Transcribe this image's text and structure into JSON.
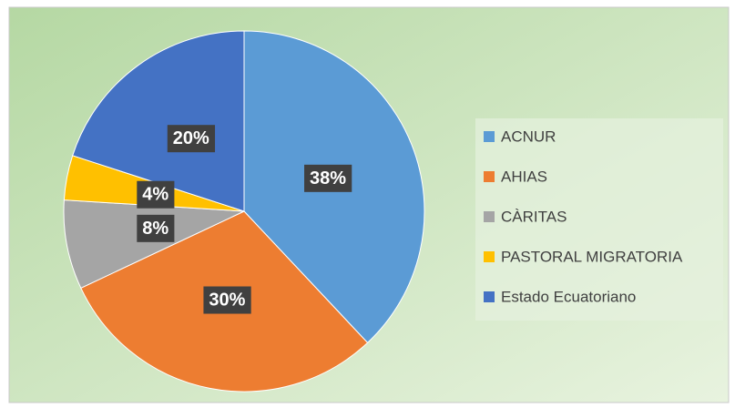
{
  "chart_data": {
    "type": "pie",
    "categories": [
      "ACNUR",
      "AHIAS",
      "CÀRITAS",
      "PASTORAL MIGRATORIA",
      "Estado Ecuatoriano"
    ],
    "values": [
      38,
      30,
      8,
      4,
      20
    ],
    "value_labels": [
      "38%",
      "30%",
      "8%",
      "4%",
      "20%"
    ],
    "colors": [
      "#5b9bd5",
      "#ed7d31",
      "#a5a5a5",
      "#ffc000",
      "#4472c4"
    ],
    "legend": "right"
  }
}
